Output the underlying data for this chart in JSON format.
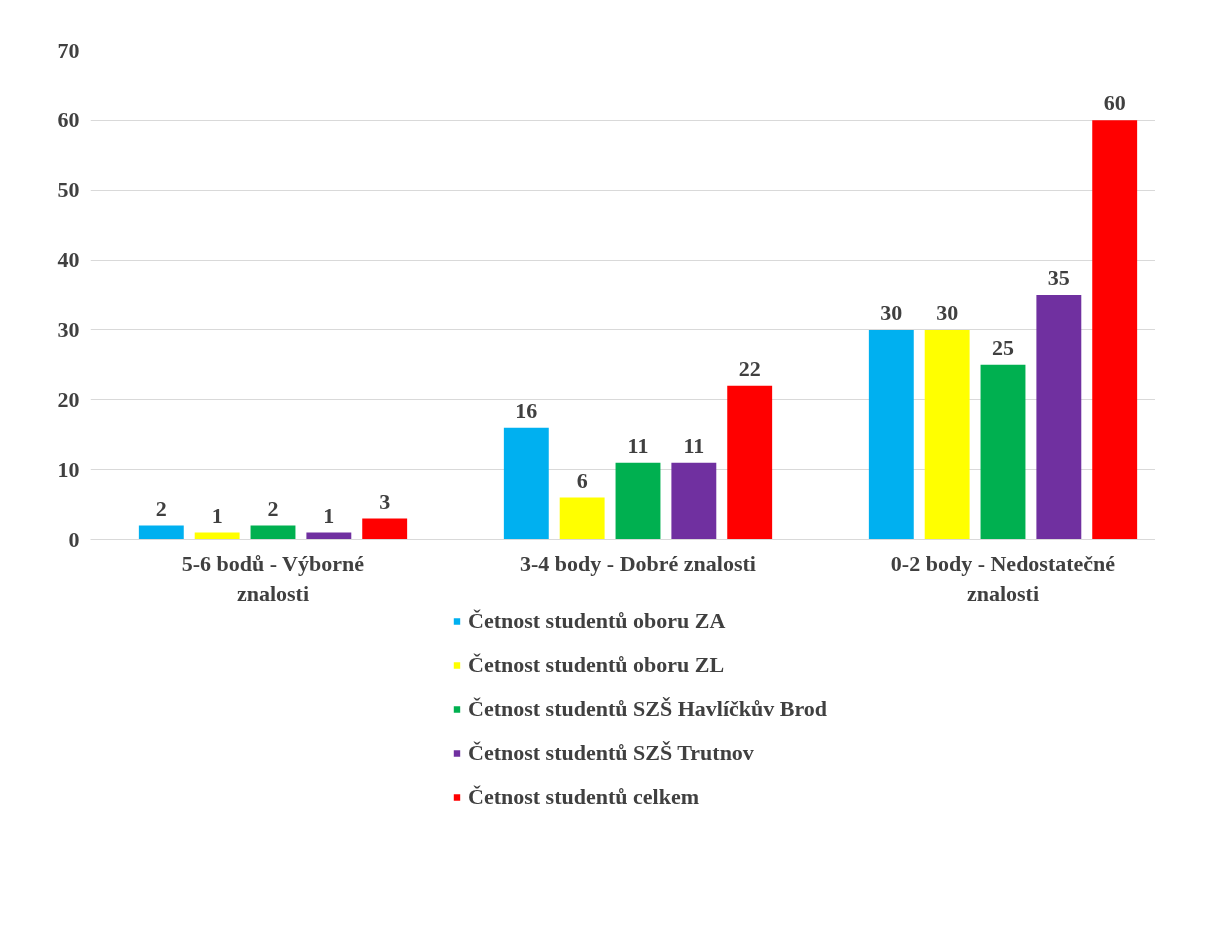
{
  "chart_data": {
    "type": "bar",
    "categories": [
      "5-6 bodů - Výborné znalosti",
      "3-4 body - Dobré znalosti",
      "0-2 body - Nedostatečné znalosti"
    ],
    "series": [
      {
        "name": "Četnost studentů oboru ZA",
        "color": "#00b0f0",
        "values": [
          2,
          16,
          30
        ]
      },
      {
        "name": "Četnost studentů oboru ZL",
        "color": "#ffff00",
        "values": [
          1,
          6,
          30
        ]
      },
      {
        "name": "Četnost studentů SZŠ Havlíčkův Brod",
        "color": "#00b050",
        "values": [
          2,
          11,
          25
        ]
      },
      {
        "name": "Četnost studentů SZŠ Trutnov",
        "color": "#7030a0",
        "values": [
          1,
          11,
          35
        ]
      },
      {
        "name": "Četnost studentů celkem",
        "color": "#ff0000",
        "values": [
          3,
          22,
          60
        ]
      }
    ],
    "ylim": [
      0,
      70
    ],
    "yticks": [
      0,
      10,
      20,
      30,
      40,
      50,
      60,
      70
    ],
    "grid": "y",
    "legend": "bottom",
    "data_labels": true
  }
}
